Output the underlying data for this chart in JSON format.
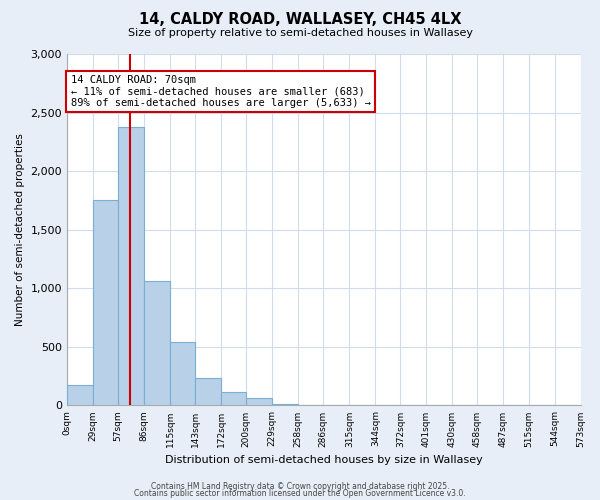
{
  "title": "14, CALDY ROAD, WALLASEY, CH45 4LX",
  "subtitle": "Size of property relative to semi-detached houses in Wallasey",
  "xlabel": "Distribution of semi-detached houses by size in Wallasey",
  "ylabel": "Number of semi-detached properties",
  "bin_labels": [
    "0sqm",
    "29sqm",
    "57sqm",
    "86sqm",
    "115sqm",
    "143sqm",
    "172sqm",
    "200sqm",
    "229sqm",
    "258sqm",
    "286sqm",
    "315sqm",
    "344sqm",
    "372sqm",
    "401sqm",
    "430sqm",
    "458sqm",
    "487sqm",
    "515sqm",
    "544sqm",
    "573sqm"
  ],
  "bin_edges": [
    0,
    29,
    57,
    86,
    115,
    143,
    172,
    200,
    229,
    258,
    286,
    315,
    344,
    372,
    401,
    430,
    458,
    487,
    515,
    544,
    573
  ],
  "bar_values": [
    175,
    1750,
    2375,
    1065,
    540,
    230,
    115,
    65,
    10,
    0,
    0,
    0,
    0,
    0,
    0,
    0,
    0,
    0,
    0,
    0
  ],
  "bar_color": "#b8d0e8",
  "bar_edge_color": "#7aafd4",
  "ylim": [
    0,
    3000
  ],
  "yticks": [
    0,
    500,
    1000,
    1500,
    2000,
    2500,
    3000
  ],
  "property_value": 70,
  "property_line_color": "#cc0000",
  "annotation_title": "14 CALDY ROAD: 70sqm",
  "annotation_line1": "← 11% of semi-detached houses are smaller (683)",
  "annotation_line2": "89% of semi-detached houses are larger (5,633) →",
  "annotation_box_color": "#cc0000",
  "footer_line1": "Contains HM Land Registry data © Crown copyright and database right 2025.",
  "footer_line2": "Contains public sector information licensed under the Open Government Licence v3.0.",
  "background_color": "#e8eef8",
  "plot_bg_color": "#ffffff",
  "grid_color": "#d0dcee"
}
